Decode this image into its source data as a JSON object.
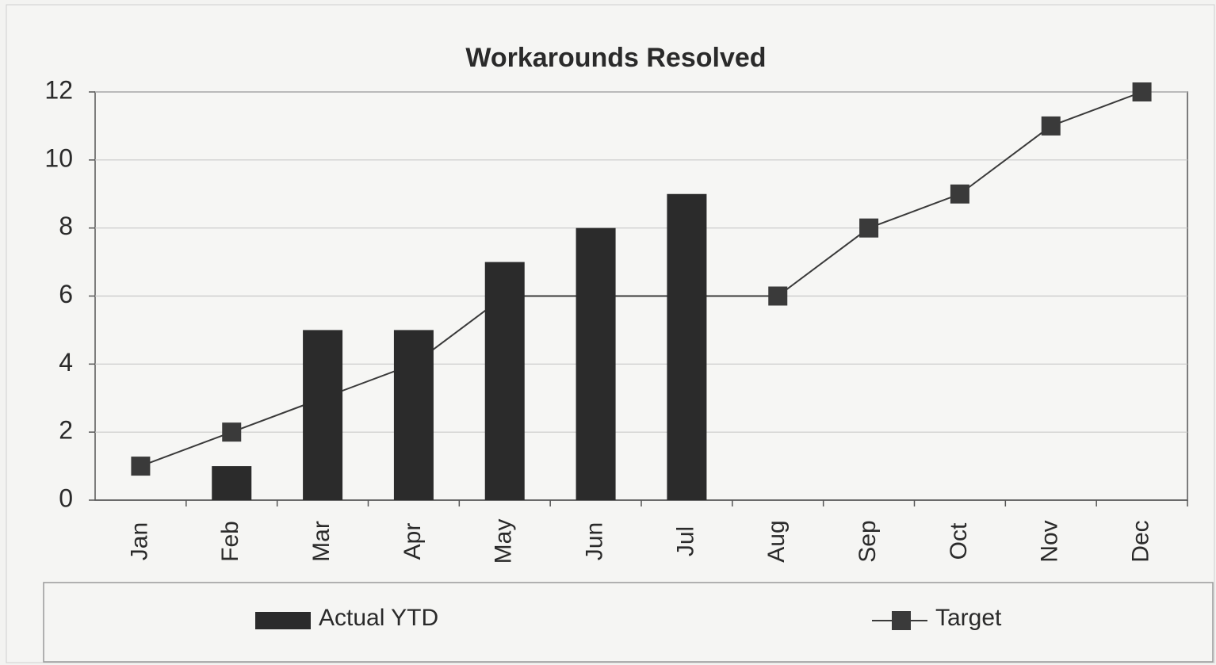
{
  "chart_data": {
    "type": "bar",
    "title": "Workarounds Resolved",
    "categories": [
      "Jan",
      "Feb",
      "Mar",
      "Apr",
      "May",
      "Jun",
      "Jul",
      "Aug",
      "Sep",
      "Oct",
      "Nov",
      "Dec"
    ],
    "series": [
      {
        "name": "Actual YTD",
        "type": "bar",
        "color": "#2b2b2b",
        "values": [
          0,
          1,
          5,
          5,
          7,
          8,
          9,
          null,
          null,
          null,
          null,
          null
        ]
      },
      {
        "name": "Target",
        "type": "line",
        "color": "#3a3a3a",
        "values": [
          1,
          2,
          3,
          4,
          6,
          6,
          6,
          6,
          8,
          9,
          11,
          12
        ]
      }
    ],
    "ylim": [
      0,
      12
    ],
    "yticks": [
      0,
      2,
      4,
      6,
      8,
      10,
      12
    ],
    "grid": true,
    "legend": "bottom"
  }
}
